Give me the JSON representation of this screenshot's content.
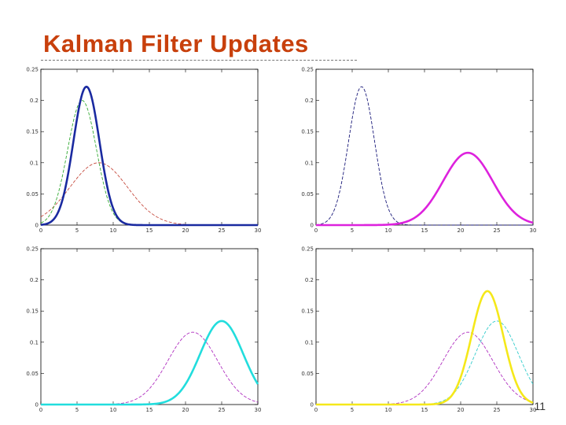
{
  "slide": {
    "title": "Kalman Filter Updates",
    "number": "11"
  },
  "chart_data": [
    {
      "type": "line",
      "position": "top-left",
      "xlim": [
        0,
        30
      ],
      "ylim": [
        0,
        0.25
      ],
      "xticks": [
        "0",
        "5",
        "10",
        "15",
        "20",
        "25",
        "30"
      ],
      "yticks": [
        "0",
        "0.05",
        "0.1",
        "0.15",
        "0.2",
        "0.25"
      ],
      "curves": [
        {
          "mean": 8,
          "peak": 0.1,
          "color": "#c0392b",
          "width": 0.8,
          "dash": "4,2"
        },
        {
          "mean": 5.7,
          "peak": 0.2,
          "color": "#33aa33",
          "width": 0.9,
          "dash": "4,2"
        },
        {
          "mean": 6.3,
          "peak": 0.222,
          "color": "#1a2aa0",
          "width": 2.6,
          "dash": ""
        }
      ]
    },
    {
      "type": "line",
      "position": "top-right",
      "xlim": [
        0,
        30
      ],
      "ylim": [
        0,
        0.25
      ],
      "xticks": [
        "0",
        "5",
        "10",
        "15",
        "20",
        "25",
        "30"
      ],
      "yticks": [
        "0",
        "0.05",
        "0.1",
        "0.15",
        "0.2",
        "0.25"
      ],
      "curves": [
        {
          "mean": 6.3,
          "peak": 0.222,
          "color": "#1a1a7a",
          "width": 0.9,
          "dash": "4,2"
        },
        {
          "mean": 21,
          "peak": 0.116,
          "color": "#dd22dd",
          "width": 2.6,
          "dash": ""
        }
      ]
    },
    {
      "type": "line",
      "position": "bottom-left",
      "xlim": [
        0,
        30
      ],
      "ylim": [
        0,
        0.25
      ],
      "xticks": [
        "0",
        "5",
        "10",
        "15",
        "20",
        "25",
        "30"
      ],
      "yticks": [
        "0",
        "0.05",
        "0.1",
        "0.15",
        "0.2",
        "0.25"
      ],
      "curves": [
        {
          "mean": 21,
          "peak": 0.116,
          "color": "#b030c0",
          "width": 0.9,
          "dash": "4,2"
        },
        {
          "mean": 25,
          "peak": 0.134,
          "color": "#22dddd",
          "width": 2.6,
          "dash": ""
        }
      ]
    },
    {
      "type": "line",
      "position": "bottom-right",
      "xlim": [
        0,
        30
      ],
      "ylim": [
        0,
        0.25
      ],
      "xticks": [
        "0",
        "5",
        "10",
        "15",
        "20",
        "25",
        "30"
      ],
      "yticks": [
        "0",
        "0.05",
        "0.1",
        "0.15",
        "0.2",
        "0.25"
      ],
      "curves": [
        {
          "mean": 21,
          "peak": 0.116,
          "color": "#b030c0",
          "width": 0.9,
          "dash": "4,2"
        },
        {
          "mean": 25,
          "peak": 0.134,
          "color": "#33cccc",
          "width": 0.9,
          "dash": "4,2"
        },
        {
          "mean": 23.7,
          "peak": 0.182,
          "color": "#f5e81a",
          "width": 2.6,
          "dash": ""
        }
      ]
    }
  ]
}
